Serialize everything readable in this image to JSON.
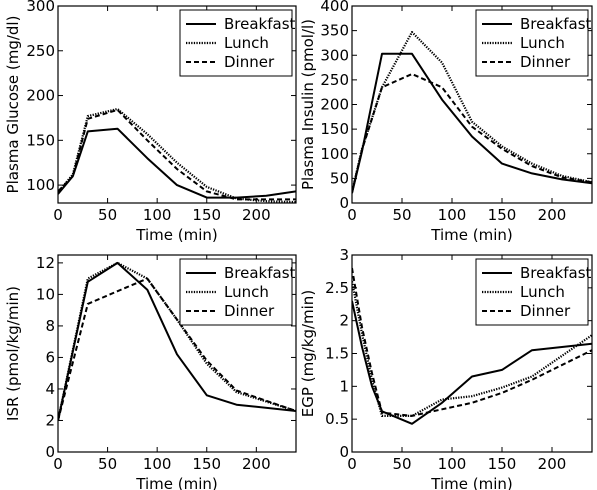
{
  "chart_data": [
    {
      "type": "line",
      "xlabel": "Time (min)",
      "ylabel": "Plasma Glucose (mg/dl)",
      "xlim": [
        0,
        240
      ],
      "ylim": [
        80,
        300
      ],
      "xticks": [
        0,
        50,
        100,
        150,
        200
      ],
      "yticks": [
        100,
        150,
        200,
        250,
        300
      ],
      "legend": "top-right",
      "series": [
        {
          "name": "Breakfast",
          "style": "solid",
          "x": [
            0,
            15,
            30,
            60,
            90,
            120,
            150,
            180,
            210,
            240
          ],
          "y": [
            90,
            110,
            160,
            163,
            130,
            100,
            86,
            86,
            88,
            93
          ]
        },
        {
          "name": "Lunch",
          "style": "dotted",
          "x": [
            0,
            15,
            30,
            60,
            90,
            120,
            150,
            180,
            210,
            240
          ],
          "y": [
            92,
            112,
            177,
            185,
            157,
            125,
            98,
            85,
            82,
            81
          ]
        },
        {
          "name": "Dinner",
          "style": "dashed",
          "x": [
            0,
            15,
            30,
            60,
            90,
            120,
            150,
            180,
            210,
            240
          ],
          "y": [
            93,
            110,
            174,
            184,
            150,
            118,
            93,
            84,
            84,
            84
          ]
        }
      ]
    },
    {
      "type": "line",
      "xlabel": "Time (min)",
      "ylabel": "Plasma Insulin (pmol/l)",
      "xlim": [
        0,
        240
      ],
      "ylim": [
        0,
        400
      ],
      "xticks": [
        0,
        50,
        100,
        150,
        200
      ],
      "yticks": [
        0,
        50,
        100,
        150,
        200,
        250,
        300,
        350,
        400
      ],
      "legend": "top-right",
      "series": [
        {
          "name": "Breakfast",
          "style": "solid",
          "x": [
            0,
            10,
            30,
            60,
            90,
            120,
            150,
            180,
            210,
            240
          ],
          "y": [
            20,
            105,
            303,
            303,
            210,
            135,
            80,
            60,
            48,
            40
          ]
        },
        {
          "name": "Lunch",
          "style": "dotted",
          "x": [
            0,
            10,
            30,
            60,
            90,
            120,
            150,
            180,
            210,
            240
          ],
          "y": [
            22,
            110,
            235,
            347,
            285,
            165,
            115,
            80,
            55,
            42
          ]
        },
        {
          "name": "Dinner",
          "style": "dashed",
          "x": [
            0,
            10,
            30,
            60,
            90,
            120,
            150,
            180,
            210,
            240
          ],
          "y": [
            22,
            108,
            235,
            262,
            235,
            155,
            110,
            75,
            52,
            42
          ]
        }
      ]
    },
    {
      "type": "line",
      "xlabel": "Time (min)",
      "ylabel": "ISR (pmol/kg/min)",
      "xlim": [
        0,
        240
      ],
      "ylim": [
        0,
        12.5
      ],
      "xticks": [
        0,
        50,
        100,
        150,
        200
      ],
      "yticks": [
        0,
        2,
        4,
        6,
        8,
        10,
        12
      ],
      "legend": "top-right",
      "series": [
        {
          "name": "Breakfast",
          "style": "solid",
          "x": [
            0,
            30,
            60,
            90,
            120,
            150,
            180,
            240
          ],
          "y": [
            2.0,
            10.8,
            12.0,
            10.3,
            6.2,
            3.6,
            3.0,
            2.6
          ]
        },
        {
          "name": "Lunch",
          "style": "dotted",
          "x": [
            0,
            30,
            60,
            90,
            120,
            150,
            180,
            240
          ],
          "y": [
            2.0,
            11.0,
            12.0,
            11.0,
            8.4,
            5.6,
            3.8,
            2.6
          ]
        },
        {
          "name": "Dinner",
          "style": "dashed",
          "x": [
            0,
            30,
            60,
            90,
            120,
            150,
            180,
            240
          ],
          "y": [
            2.0,
            9.4,
            10.2,
            11.0,
            8.4,
            5.8,
            3.9,
            2.6
          ]
        }
      ]
    },
    {
      "type": "line",
      "xlabel": "Time (min)",
      "ylabel": "EGP (mg/kg/min)",
      "xlim": [
        0,
        240
      ],
      "ylim": [
        0,
        3
      ],
      "xticks": [
        0,
        50,
        100,
        150,
        200
      ],
      "yticks": [
        0,
        0.5,
        1,
        1.5,
        2,
        2.5,
        3
      ],
      "ytick_labels": [
        "0",
        "0.5",
        "1",
        "1.5",
        "2",
        "2.5",
        "3"
      ],
      "legend": "top-right",
      "series": [
        {
          "name": "Breakfast",
          "style": "solid",
          "x": [
            0,
            10,
            20,
            30,
            60,
            90,
            120,
            150,
            180,
            240
          ],
          "y": [
            2.3,
            1.6,
            1.0,
            0.62,
            0.43,
            0.75,
            1.15,
            1.25,
            1.55,
            1.65
          ]
        },
        {
          "name": "Lunch",
          "style": "dotted",
          "x": [
            0,
            10,
            20,
            30,
            60,
            90,
            120,
            150,
            180,
            240
          ],
          "y": [
            2.6,
            1.8,
            1.1,
            0.55,
            0.55,
            0.8,
            0.85,
            0.98,
            1.15,
            1.78
          ]
        },
        {
          "name": "Dinner",
          "style": "dashed",
          "x": [
            0,
            10,
            20,
            30,
            60,
            90,
            120,
            150,
            180,
            240
          ],
          "y": [
            2.8,
            1.9,
            1.2,
            0.6,
            0.55,
            0.65,
            0.75,
            0.9,
            1.1,
            1.55
          ]
        }
      ]
    }
  ]
}
